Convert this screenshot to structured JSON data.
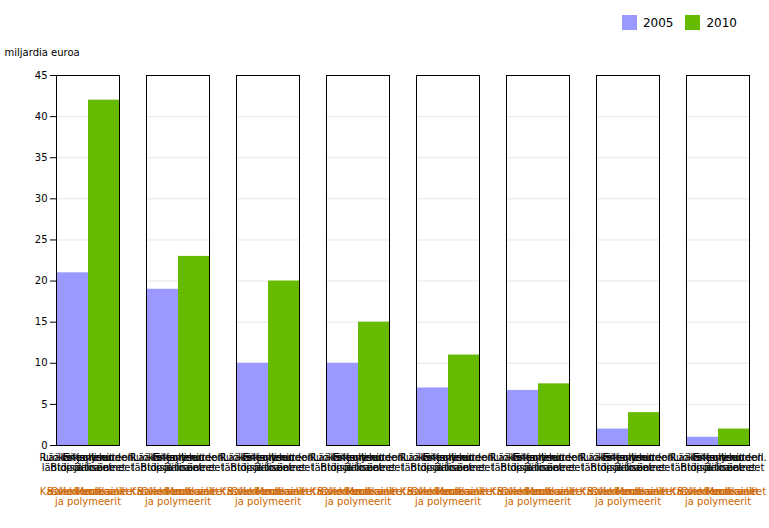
{
  "chart_data": {
    "type": "bar",
    "categories": [
      "Liikenteen\nBiopolitoaineet",
      "Kasvien uuteaineet",
      "Lääketeollisuuden\nlähtö- ja lisäaineet",
      "Bulkkikemikaalit\nja polymeerit",
      "Ruoka- ja rehuteoll.\nlisäaineet",
      "Oleokemikaalit",
      "Entsyymit",
      "Muut"
    ],
    "series": [
      {
        "name": "2005",
        "color": "#9999ff",
        "values": [
          21,
          19,
          10,
          10,
          7,
          6.7,
          2,
          1
        ]
      },
      {
        "name": "2010",
        "color": "#66bb00",
        "values": [
          42,
          23,
          20,
          15,
          11,
          7.5,
          4,
          2
        ]
      }
    ],
    "ylabel": "miljardia euroa",
    "ylim": [
      0,
      45
    ],
    "yticks": [
      0,
      5,
      10,
      15,
      20,
      25,
      30,
      35,
      40,
      45
    ],
    "grid": true,
    "legend": "upper right"
  }
}
